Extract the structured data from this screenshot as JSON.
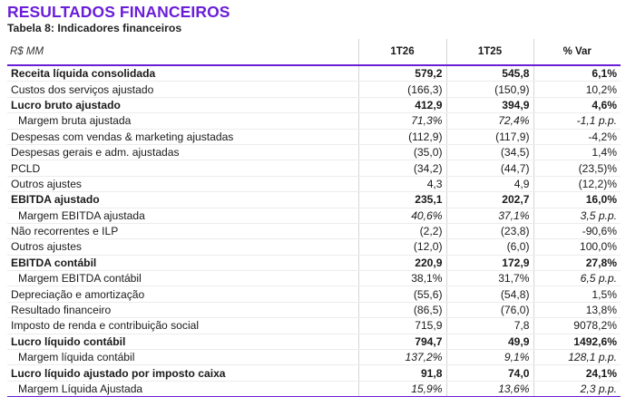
{
  "title": "RESULTADOS FINANCEIROS",
  "subtitle": "Tabela 8: Indicadores financeiros",
  "table": {
    "headers": [
      "R$ MM",
      "1T26",
      "1T25",
      "% Var"
    ],
    "rows": [
      {
        "label": "Receita líquida consolidada",
        "v1": "579,2",
        "v2": "545,8",
        "v3": "6,1%",
        "style": "bold"
      },
      {
        "label": "Custos dos serviços ajustado",
        "v1": "(166,3)",
        "v2": "(150,9)",
        "v3": "10,2%",
        "style": "normal"
      },
      {
        "label": "Lucro bruto ajustado",
        "v1": "412,9",
        "v2": "394,9",
        "v3": "4,6%",
        "style": "bold"
      },
      {
        "label": "Margem bruta ajustada",
        "v1": "71,3%",
        "v2": "72,4%",
        "v3": "-1,1 p.p.",
        "style": "sub"
      },
      {
        "label": "Despesas com vendas & marketing ajustadas",
        "v1": "(112,9)",
        "v2": "(117,9)",
        "v3": "-4,2%",
        "style": "normal"
      },
      {
        "label": "Despesas gerais e adm. ajustadas",
        "v1": "(35,0)",
        "v2": "(34,5)",
        "v3": "1,4%",
        "style": "normal"
      },
      {
        "label": "PCLD",
        "v1": "(34,2)",
        "v2": "(44,7)",
        "v3": "(23,5)%",
        "style": "normal"
      },
      {
        "label": "Outros ajustes",
        "v1": "4,3",
        "v2": "4,9",
        "v3": "(12,2)%",
        "style": "normal"
      },
      {
        "label": "EBITDA ajustado",
        "v1": "235,1",
        "v2": "202,7",
        "v3": "16,0%",
        "style": "bold"
      },
      {
        "label": "Margem EBITDA ajustada",
        "v1": "40,6%",
        "v2": "37,1%",
        "v3": "3,5 p.p.",
        "style": "sub"
      },
      {
        "label": "Não recorrentes e ILP",
        "v1": "(2,2)",
        "v2": "(23,8)",
        "v3": "-90,6%",
        "style": "normal"
      },
      {
        "label": "Outros ajustes",
        "v1": "(12,0)",
        "v2": "(6,0)",
        "v3": "100,0%",
        "style": "normal"
      },
      {
        "label": "EBITDA contábil",
        "v1": "220,9",
        "v2": "172,9",
        "v3": "27,8%",
        "style": "bold"
      },
      {
        "label": "Margem EBITDA contábil",
        "v1": "38,1%",
        "v2": "31,7%",
        "v3": "6,5 p.p.",
        "style": "sub-mixed"
      },
      {
        "label": "Depreciação e amortização",
        "v1": "(55,6)",
        "v2": "(54,8)",
        "v3": "1,5%",
        "style": "normal"
      },
      {
        "label": "Resultado financeiro",
        "v1": "(86,5)",
        "v2": "(76,0)",
        "v3": "13,8%",
        "style": "normal"
      },
      {
        "label": "Imposto de renda e contribuição social",
        "v1": "715,9",
        "v2": "7,8",
        "v3": "9078,2%",
        "style": "normal"
      },
      {
        "label": "Lucro líquido contábil",
        "v1": "794,7",
        "v2": "49,9",
        "v3": "1492,6%",
        "style": "bold"
      },
      {
        "label": "Margem líquida contábil",
        "v1": "137,2%",
        "v2": "9,1%",
        "v3": "128,1 p.p.",
        "style": "sub"
      },
      {
        "label": "Lucro líquido ajustado por imposto caixa",
        "v1": "91,8",
        "v2": "74,0",
        "v3": "24,1%",
        "style": "bold"
      },
      {
        "label": "Margem Líquida Ajustada",
        "v1": "15,9%",
        "v2": "13,6%",
        "v3": "2,3 p.p.",
        "style": "sub"
      }
    ]
  }
}
